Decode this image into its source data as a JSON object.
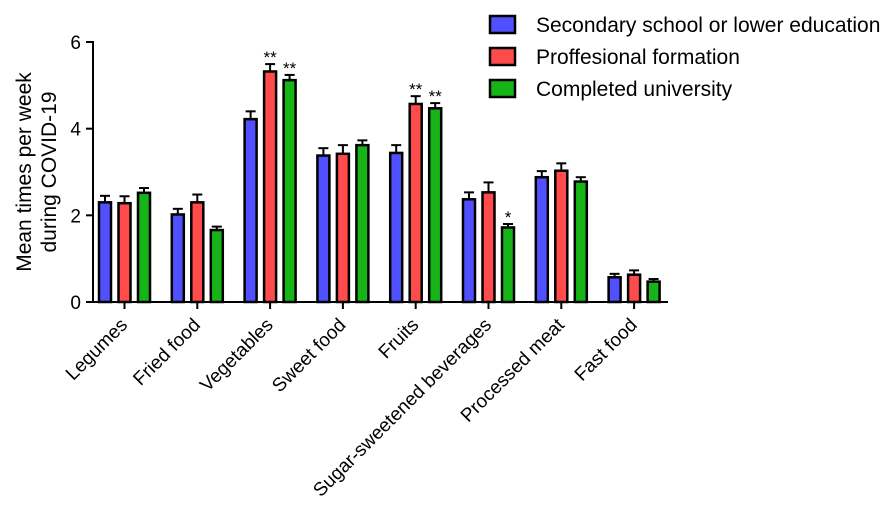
{
  "chart_data": {
    "type": "bar",
    "title": "",
    "xlabel": "",
    "ylabel_lines": [
      "Mean times per week",
      "during COVID-19"
    ],
    "ylim": [
      0,
      6
    ],
    "yticks": [
      0,
      2,
      4,
      6
    ],
    "legend_position": "top-right",
    "categories": [
      "Legumes",
      "Fried food",
      "Vegetables",
      "Sweet food",
      "Fruits",
      "Sugar-sweetened beverages",
      "Processed meat",
      "Fast food"
    ],
    "series": [
      {
        "name": "Secondary school or lower education",
        "color": "#5050ff",
        "values": [
          2.3,
          2.02,
          4.22,
          3.38,
          3.44,
          2.37,
          2.88,
          0.57
        ],
        "errors": [
          0.15,
          0.13,
          0.18,
          0.17,
          0.18,
          0.16,
          0.14,
          0.08
        ],
        "significance": [
          "",
          "",
          "",
          "",
          "",
          "",
          "",
          ""
        ]
      },
      {
        "name": "Proffesional formation",
        "color": "#ff4b4b",
        "values": [
          2.28,
          2.3,
          5.32,
          3.42,
          4.57,
          2.53,
          3.03,
          0.63
        ],
        "errors": [
          0.16,
          0.18,
          0.17,
          0.2,
          0.18,
          0.23,
          0.17,
          0.1
        ],
        "significance": [
          "",
          "",
          "**",
          "",
          "**",
          "",
          "",
          ""
        ]
      },
      {
        "name": "Completed university",
        "color": "#17b417",
        "values": [
          2.52,
          1.66,
          5.12,
          3.62,
          4.47,
          1.72,
          2.78,
          0.47
        ],
        "errors": [
          0.11,
          0.08,
          0.12,
          0.11,
          0.12,
          0.08,
          0.1,
          0.06
        ],
        "significance": [
          "",
          "",
          "**",
          "",
          "**",
          "*",
          "",
          ""
        ]
      }
    ]
  }
}
